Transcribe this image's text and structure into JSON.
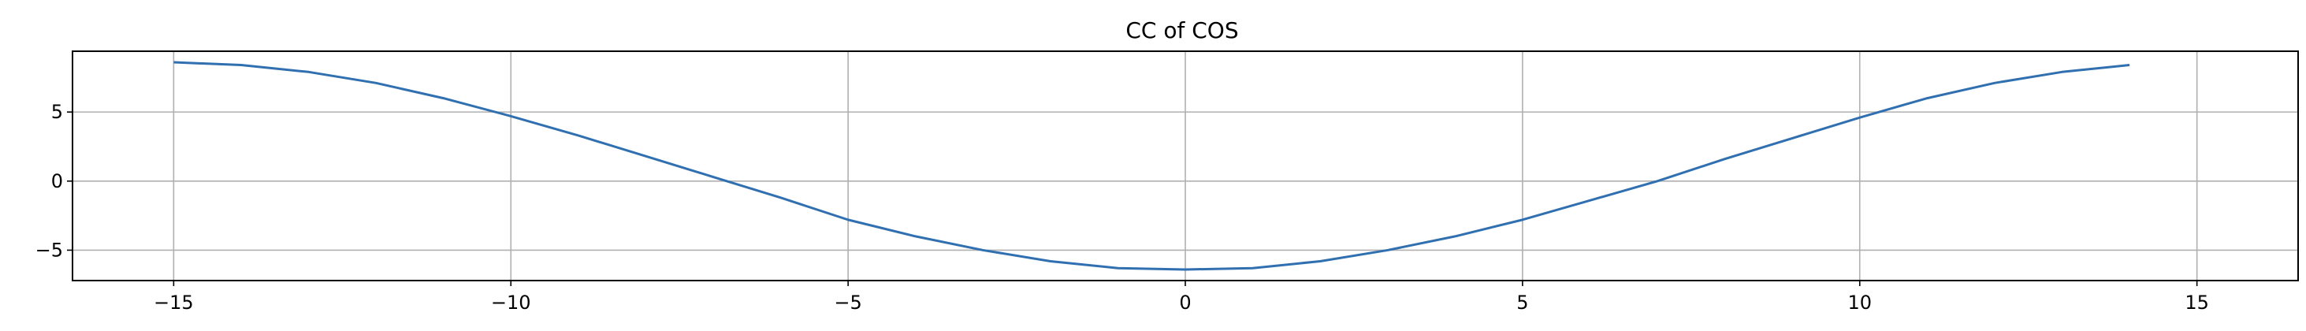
{
  "chart_data": {
    "type": "line",
    "title": "CC of COS",
    "xlabel": "",
    "ylabel": "",
    "xlim": [
      -16.5,
      16.5
    ],
    "ylim": [
      -7.2,
      9.4
    ],
    "x_ticks": [
      -15,
      -10,
      -5,
      0,
      5,
      10,
      15
    ],
    "y_ticks": [
      -5,
      0,
      5
    ],
    "x_tick_labels": [
      "−15",
      "−10",
      "−5",
      "0",
      "5",
      "10",
      "15"
    ],
    "y_tick_labels": [
      "−5",
      "0",
      "5"
    ],
    "grid": true,
    "series": [
      {
        "color": "#3170b0",
        "x": [
          -15,
          -14,
          -13,
          -12,
          -11,
          -10,
          -9,
          -8,
          -7,
          -6,
          -5,
          -4,
          -3,
          -2,
          -1,
          0,
          1,
          2,
          3,
          4,
          5,
          6,
          7,
          8,
          9,
          10,
          11,
          12,
          13,
          14
        ],
        "values": [
          8.6,
          8.4,
          7.9,
          7.1,
          6.0,
          4.7,
          3.3,
          1.8,
          0.3,
          -1.2,
          -2.8,
          -4.0,
          -5.0,
          -5.8,
          -6.3,
          -6.4,
          -6.3,
          -5.8,
          -5.0,
          -4.0,
          -2.8,
          -1.4,
          0.0,
          1.6,
          3.1,
          4.6,
          6.0,
          7.1,
          7.9,
          8.4
        ]
      }
    ]
  }
}
